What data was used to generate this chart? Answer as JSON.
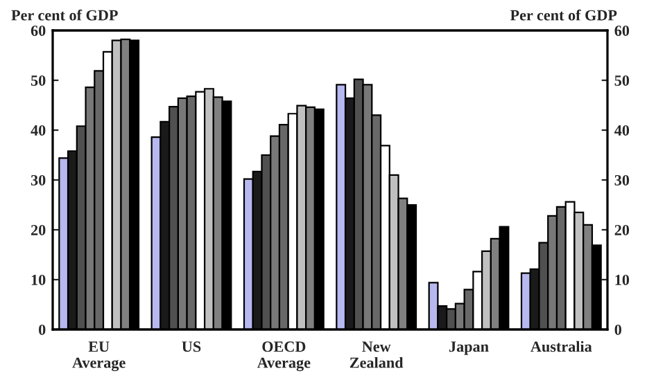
{
  "chart_data": {
    "type": "bar",
    "ylabel": "Per cent of GDP",
    "y2label": "Per cent of GDP",
    "categories": [
      "EU\nAverage",
      "US",
      "OECD\nAverage",
      "New\nZealand",
      "Japan",
      "Australia"
    ],
    "series": [
      {
        "color": "#b8b8f0",
        "values": [
          34.4,
          38.6,
          30.2,
          49.1,
          9.4,
          11.3
        ]
      },
      {
        "color": "#1a1a1a",
        "values": [
          35.8,
          41.7,
          31.7,
          46.4,
          4.7,
          12.1
        ]
      },
      {
        "color": "#505050",
        "values": [
          40.8,
          44.7,
          35.0,
          50.2,
          4.1,
          17.4
        ]
      },
      {
        "color": "#787878",
        "values": [
          48.6,
          46.4,
          38.8,
          49.1,
          5.2,
          22.8
        ]
      },
      {
        "color": "#686868",
        "values": [
          51.9,
          46.8,
          41.1,
          43.0,
          8.0,
          24.6
        ]
      },
      {
        "color": "#ffffff",
        "values": [
          55.7,
          47.7,
          43.3,
          36.9,
          11.6,
          25.6
        ]
      },
      {
        "color": "#c0c0c0",
        "values": [
          58.0,
          48.3,
          44.9,
          31.0,
          15.7,
          23.5
        ]
      },
      {
        "color": "#808080",
        "values": [
          58.2,
          46.6,
          44.6,
          26.3,
          18.2,
          21.0
        ]
      },
      {
        "color": "#000000",
        "values": [
          58.0,
          45.8,
          44.2,
          25.0,
          20.6,
          16.9
        ]
      }
    ],
    "ylim": [
      0,
      60
    ],
    "yticks": [
      0,
      10,
      20,
      30,
      40,
      50,
      60
    ],
    "y2lim": [
      0,
      60
    ],
    "y2ticks": [
      0,
      10,
      20,
      30,
      40,
      50,
      60
    ],
    "grid": false,
    "legend": false
  }
}
